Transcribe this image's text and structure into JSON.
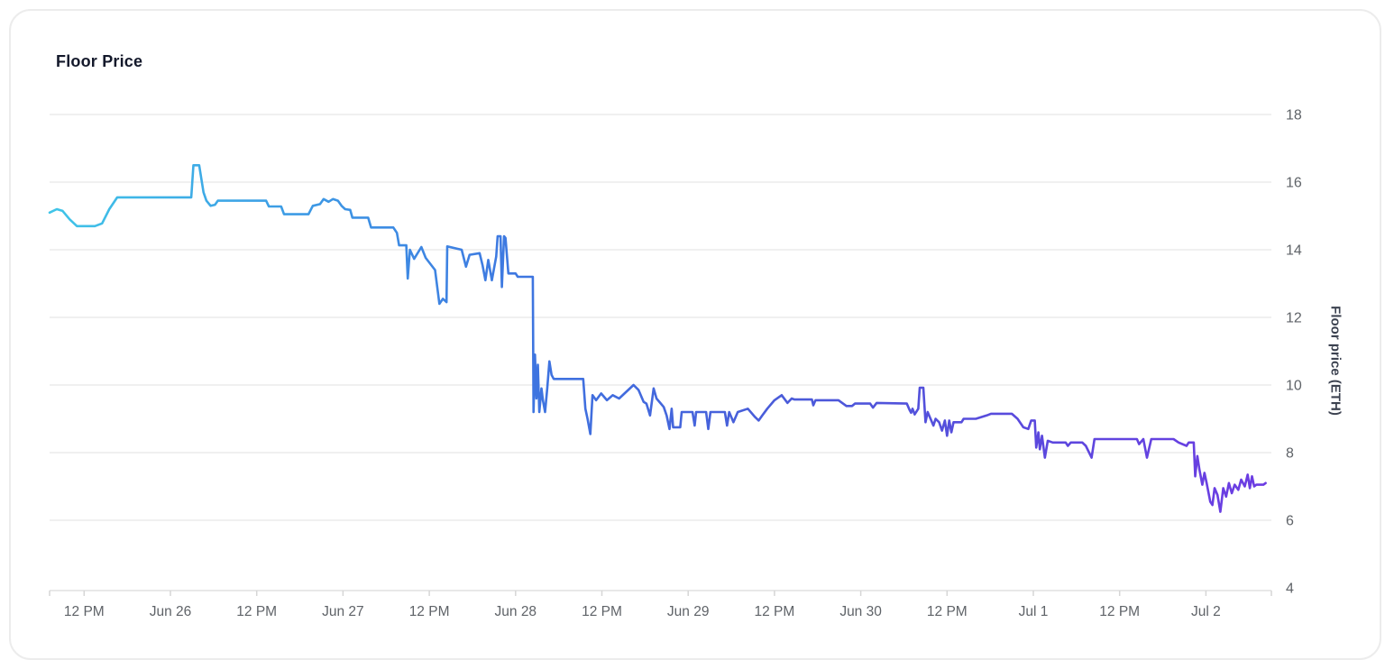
{
  "card": {
    "title": "Floor Price"
  },
  "chart_data": {
    "type": "line",
    "title": "Floor Price",
    "legend": "none",
    "grid": "horizontal gridlines only",
    "x_axis": {
      "kind": "time",
      "t_unit": "hours since Jun 25 00:00",
      "range_t": [
        7.2,
        177.1
      ],
      "ticks": [
        {
          "t": 12,
          "label": "12 PM"
        },
        {
          "t": 24,
          "label": "Jun 26"
        },
        {
          "t": 36,
          "label": "12 PM"
        },
        {
          "t": 48,
          "label": "Jun 27"
        },
        {
          "t": 60,
          "label": "12 PM"
        },
        {
          "t": 72,
          "label": "Jun 28"
        },
        {
          "t": 84,
          "label": "12 PM"
        },
        {
          "t": 96,
          "label": "Jun 29"
        },
        {
          "t": 108,
          "label": "12 PM"
        },
        {
          "t": 120,
          "label": "Jun 30"
        },
        {
          "t": 132,
          "label": "12 PM"
        },
        {
          "t": 144,
          "label": "Jul 1"
        },
        {
          "t": 156,
          "label": "12 PM"
        },
        {
          "t": 168,
          "label": "Jul 2"
        }
      ],
      "edge_ticks_t": [
        7.2,
        177.1
      ]
    },
    "y_axis": {
      "label": "Floor price (ETH)",
      "side": "right",
      "range": [
        4,
        18
      ],
      "ticks": [
        4,
        6,
        8,
        10,
        12,
        14,
        16,
        18
      ]
    },
    "series": [
      {
        "name": "Floor price (ETH)",
        "gradient_stops": [
          "#40C5E8",
          "#3D9BE5",
          "#3E74E0",
          "#4A5BD9",
          "#5A49DD",
          "#6D3CE3"
        ],
        "points": [
          [
            7.2,
            15.1
          ],
          [
            8.2,
            15.2
          ],
          [
            9.0,
            15.15
          ],
          [
            10.0,
            14.9
          ],
          [
            11.0,
            14.7
          ],
          [
            13.5,
            14.7
          ],
          [
            14.5,
            14.78
          ],
          [
            15.5,
            15.2
          ],
          [
            16.6,
            15.55
          ],
          [
            26.9,
            15.55
          ],
          [
            27.2,
            16.5
          ],
          [
            28.0,
            16.5
          ],
          [
            28.6,
            15.7
          ],
          [
            29.0,
            15.45
          ],
          [
            29.6,
            15.3
          ],
          [
            30.2,
            15.33
          ],
          [
            30.6,
            15.45
          ],
          [
            37.3,
            15.45
          ],
          [
            37.7,
            15.28
          ],
          [
            39.4,
            15.28
          ],
          [
            39.8,
            15.05
          ],
          [
            43.2,
            15.05
          ],
          [
            43.8,
            15.3
          ],
          [
            44.8,
            15.35
          ],
          [
            45.3,
            15.5
          ],
          [
            46.0,
            15.42
          ],
          [
            46.6,
            15.5
          ],
          [
            47.3,
            15.45
          ],
          [
            47.8,
            15.3
          ],
          [
            48.3,
            15.2
          ],
          [
            49.0,
            15.18
          ],
          [
            49.3,
            14.95
          ],
          [
            51.5,
            14.95
          ],
          [
            51.9,
            14.66
          ],
          [
            55.0,
            14.66
          ],
          [
            55.5,
            14.5
          ],
          [
            55.8,
            14.13
          ],
          [
            56.8,
            14.13
          ],
          [
            57.0,
            13.15
          ],
          [
            57.3,
            14.0
          ],
          [
            57.9,
            13.73
          ],
          [
            58.9,
            14.08
          ],
          [
            59.5,
            13.76
          ],
          [
            60.8,
            13.4
          ],
          [
            61.4,
            12.4
          ],
          [
            61.9,
            12.55
          ],
          [
            62.4,
            12.45
          ],
          [
            62.5,
            14.1
          ],
          [
            64.5,
            14.0
          ],
          [
            65.1,
            13.5
          ],
          [
            65.6,
            13.85
          ],
          [
            67.0,
            13.9
          ],
          [
            67.4,
            13.55
          ],
          [
            67.8,
            13.1
          ],
          [
            68.2,
            13.7
          ],
          [
            68.7,
            13.1
          ],
          [
            69.3,
            13.8
          ],
          [
            69.5,
            14.4
          ],
          [
            69.9,
            14.4
          ],
          [
            70.1,
            12.9
          ],
          [
            70.4,
            14.4
          ],
          [
            70.6,
            14.35
          ],
          [
            71.0,
            13.3
          ],
          [
            72.0,
            13.3
          ],
          [
            72.3,
            13.2
          ],
          [
            74.4,
            13.2
          ],
          [
            74.5,
            9.2
          ],
          [
            74.7,
            10.9
          ],
          [
            74.9,
            9.6
          ],
          [
            75.1,
            10.6
          ],
          [
            75.3,
            9.2
          ],
          [
            75.6,
            9.9
          ],
          [
            75.8,
            9.55
          ],
          [
            76.1,
            9.2
          ],
          [
            76.4,
            9.9
          ],
          [
            76.7,
            10.7
          ],
          [
            77.0,
            10.3
          ],
          [
            77.3,
            10.18
          ],
          [
            81.4,
            10.18
          ],
          [
            81.7,
            9.3
          ],
          [
            82.0,
            9.0
          ],
          [
            82.4,
            8.55
          ],
          [
            82.7,
            9.7
          ],
          [
            83.2,
            9.55
          ],
          [
            83.9,
            9.75
          ],
          [
            84.7,
            9.55
          ],
          [
            85.5,
            9.7
          ],
          [
            86.4,
            9.6
          ],
          [
            87.4,
            9.8
          ],
          [
            88.4,
            10.0
          ],
          [
            89.1,
            9.85
          ],
          [
            89.8,
            9.5
          ],
          [
            90.2,
            9.45
          ],
          [
            90.7,
            9.1
          ],
          [
            91.2,
            9.9
          ],
          [
            91.6,
            9.6
          ],
          [
            92.2,
            9.45
          ],
          [
            92.6,
            9.35
          ],
          [
            93.0,
            9.1
          ],
          [
            93.4,
            8.7
          ],
          [
            93.7,
            9.3
          ],
          [
            93.9,
            8.75
          ],
          [
            94.9,
            8.75
          ],
          [
            95.1,
            9.2
          ],
          [
            96.6,
            9.2
          ],
          [
            96.9,
            8.8
          ],
          [
            97.1,
            9.2
          ],
          [
            98.5,
            9.2
          ],
          [
            98.8,
            8.7
          ],
          [
            99.1,
            9.2
          ],
          [
            101.1,
            9.2
          ],
          [
            101.4,
            8.8
          ],
          [
            101.7,
            9.2
          ],
          [
            102.3,
            8.9
          ],
          [
            102.9,
            9.2
          ],
          [
            104.3,
            9.3
          ],
          [
            105.3,
            9.05
          ],
          [
            105.8,
            8.95
          ],
          [
            106.3,
            9.1
          ],
          [
            107.0,
            9.3
          ],
          [
            108.0,
            9.55
          ],
          [
            109.0,
            9.7
          ],
          [
            109.8,
            9.47
          ],
          [
            110.4,
            9.6
          ],
          [
            110.8,
            9.57
          ],
          [
            113.2,
            9.57
          ],
          [
            113.4,
            9.4
          ],
          [
            113.7,
            9.55
          ],
          [
            116.9,
            9.55
          ],
          [
            118.0,
            9.38
          ],
          [
            118.8,
            9.38
          ],
          [
            119.2,
            9.45
          ],
          [
            121.3,
            9.45
          ],
          [
            121.7,
            9.33
          ],
          [
            122.2,
            9.47
          ],
          [
            126.4,
            9.45
          ],
          [
            126.8,
            9.26
          ],
          [
            127.0,
            9.18
          ],
          [
            127.2,
            9.3
          ],
          [
            127.5,
            9.13
          ],
          [
            128.0,
            9.3
          ],
          [
            128.2,
            9.92
          ],
          [
            128.7,
            9.92
          ],
          [
            129.0,
            8.9
          ],
          [
            129.3,
            9.2
          ],
          [
            129.7,
            9.0
          ],
          [
            130.1,
            8.8
          ],
          [
            130.4,
            9.0
          ],
          [
            130.9,
            8.9
          ],
          [
            131.3,
            8.65
          ],
          [
            131.7,
            8.95
          ],
          [
            132.0,
            8.5
          ],
          [
            132.3,
            8.95
          ],
          [
            132.6,
            8.6
          ],
          [
            132.9,
            8.9
          ],
          [
            134.0,
            8.9
          ],
          [
            134.3,
            9.0
          ],
          [
            136.0,
            9.0
          ],
          [
            137.5,
            9.1
          ],
          [
            138.1,
            9.15
          ],
          [
            141.0,
            9.15
          ],
          [
            141.8,
            9.0
          ],
          [
            142.6,
            8.75
          ],
          [
            143.3,
            8.7
          ],
          [
            143.7,
            8.95
          ],
          [
            144.2,
            8.95
          ],
          [
            144.4,
            8.15
          ],
          [
            144.7,
            8.6
          ],
          [
            144.9,
            8.1
          ],
          [
            145.2,
            8.5
          ],
          [
            145.6,
            7.85
          ],
          [
            146.0,
            8.35
          ],
          [
            146.7,
            8.3
          ],
          [
            148.5,
            8.3
          ],
          [
            148.8,
            8.2
          ],
          [
            149.2,
            8.3
          ],
          [
            150.8,
            8.3
          ],
          [
            151.3,
            8.2
          ],
          [
            152.1,
            7.85
          ],
          [
            152.5,
            8.4
          ],
          [
            158.4,
            8.4
          ],
          [
            158.7,
            8.25
          ],
          [
            159.3,
            8.4
          ],
          [
            159.8,
            7.85
          ],
          [
            160.4,
            8.4
          ],
          [
            163.5,
            8.4
          ],
          [
            164.2,
            8.3
          ],
          [
            165.3,
            8.2
          ],
          [
            165.6,
            8.3
          ],
          [
            166.3,
            8.3
          ],
          [
            166.5,
            7.3
          ],
          [
            166.8,
            7.9
          ],
          [
            167.1,
            7.5
          ],
          [
            167.5,
            7.05
          ],
          [
            167.8,
            7.4
          ],
          [
            168.1,
            7.1
          ],
          [
            168.6,
            6.55
          ],
          [
            168.9,
            6.45
          ],
          [
            169.2,
            6.95
          ],
          [
            169.6,
            6.75
          ],
          [
            170.0,
            6.25
          ],
          [
            170.4,
            6.95
          ],
          [
            170.8,
            6.7
          ],
          [
            171.2,
            7.1
          ],
          [
            171.6,
            6.8
          ],
          [
            172.0,
            7.05
          ],
          [
            172.5,
            6.9
          ],
          [
            172.9,
            7.2
          ],
          [
            173.4,
            7.0
          ],
          [
            173.8,
            7.35
          ],
          [
            174.1,
            6.95
          ],
          [
            174.4,
            7.3
          ],
          [
            174.7,
            7.0
          ],
          [
            175.0,
            7.05
          ],
          [
            176.0,
            7.05
          ],
          [
            176.3,
            7.1
          ]
        ]
      }
    ],
    "colors": {
      "gridline": "#ececec",
      "axis_line": "#e0e0e0",
      "tick_mark": "#d6d6d6",
      "tick_label": "#5f6368",
      "axis_title": "#3c4250",
      "chart_title": "#14192b",
      "card_border": "#ececec",
      "background": "#ffffff"
    }
  }
}
